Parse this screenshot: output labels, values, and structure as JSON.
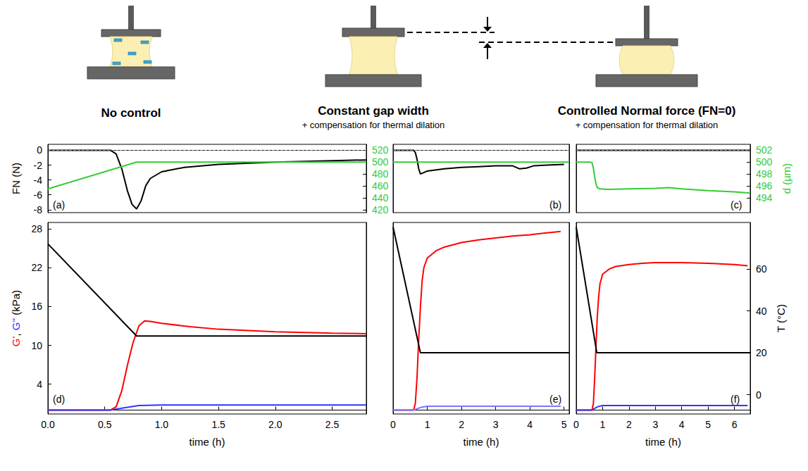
{
  "diagram": [
    {
      "title": "No control"
    },
    {
      "title": "Constant gap width",
      "subtitle": "+ compensation for thermal dilation"
    },
    {
      "title": "Controlled Normal force (FN=0)",
      "subtitle": "+ compensation for thermal dilation"
    }
  ],
  "chart_data": [
    {
      "type": "line",
      "panel_label": "(a)",
      "grid": false,
      "xlim": [
        0,
        2.8
      ],
      "ylabel": "FN (N)",
      "ylim": [
        -8.4,
        0.8
      ],
      "yticks": [
        -8,
        -6,
        -4,
        -2,
        0
      ],
      "y2lim": [
        415,
        530
      ],
      "y2ticks": [
        420,
        440,
        460,
        480,
        500,
        520
      ],
      "zero_line": 0,
      "series": [
        {
          "color": "#000000",
          "axis": "y",
          "x": [
            0,
            0.3,
            0.55,
            0.6,
            0.65,
            0.7,
            0.74,
            0.78,
            0.82,
            0.86,
            0.9,
            1.0,
            1.2,
            1.5,
            2.0,
            2.5,
            2.8
          ],
          "values": [
            0,
            0,
            0,
            -0.5,
            -2.5,
            -5.5,
            -7.3,
            -7.9,
            -6.8,
            -4.8,
            -3.8,
            -2.9,
            -2.3,
            -1.9,
            -1.6,
            -1.4,
            -1.3
          ]
        },
        {
          "color": "#33cc33",
          "axis": "y2",
          "x": [
            0,
            0.78,
            2.8
          ],
          "values": [
            455,
            500,
            500
          ]
        }
      ]
    },
    {
      "type": "line",
      "panel_label": "(b)",
      "grid": false,
      "xlim": [
        0,
        5.15
      ],
      "ylim": [
        -8.4,
        0.8
      ],
      "y2lim": [
        415,
        530
      ],
      "zero_line": 0,
      "series": [
        {
          "color": "#000000",
          "axis": "y",
          "x": [
            0,
            0.6,
            0.65,
            0.7,
            0.75,
            0.8,
            0.9,
            1.0,
            1.5,
            2.0,
            2.5,
            3.0,
            3.5,
            3.7,
            3.9,
            4.1,
            4.5,
            5.0
          ],
          "values": [
            0,
            0,
            -0.3,
            -1.2,
            -2.5,
            -3.2,
            -3.0,
            -2.8,
            -2.5,
            -2.3,
            -2.2,
            -2.1,
            -2.1,
            -2.5,
            -2.4,
            -2.1,
            -2.0,
            -1.9
          ]
        },
        {
          "color": "#33cc33",
          "axis": "y2",
          "x": [
            0,
            5.15
          ],
          "values": [
            500,
            500
          ]
        }
      ]
    },
    {
      "type": "line",
      "panel_label": "(c)",
      "grid": false,
      "xlim": [
        0,
        6.6
      ],
      "ylim": [
        -8.4,
        0.8
      ],
      "y2label": "d (µm)",
      "y2lim": [
        491.5,
        503
      ],
      "y2ticks": [
        494,
        496,
        498,
        500,
        502
      ],
      "zero_line": 0,
      "series": [
        {
          "color": "#000000",
          "axis": "y",
          "x": [
            0,
            6.6
          ],
          "values": [
            0,
            0
          ]
        },
        {
          "color": "#33cc33",
          "axis": "y2",
          "x": [
            0,
            0.55,
            0.6,
            0.65,
            0.7,
            0.75,
            0.8,
            0.9,
            1.2,
            2,
            3,
            3.5,
            4,
            5,
            6,
            6.6
          ],
          "values": [
            500,
            500,
            499.9,
            499,
            497.5,
            496.3,
            495.7,
            495.5,
            495.4,
            495.5,
            495.6,
            495.7,
            495.5,
            495.2,
            495,
            494.8
          ]
        }
      ]
    },
    {
      "type": "line",
      "panel_label": "(d)",
      "grid": false,
      "xlabel": "time (h)",
      "xlim": [
        0,
        2.8
      ],
      "xticks": [
        {
          "value": 0,
          "label": "0.0"
        },
        0.5,
        {
          "value": 1,
          "label": "1.0"
        },
        1.5,
        {
          "value": 2,
          "label": "2.0"
        },
        2.5
      ],
      "ylabel": "G', G'' (kPa)",
      "ylim": [
        -0.6,
        29
      ],
      "yticks": [
        4,
        10,
        16,
        22,
        28
      ],
      "y2lim": [
        -9.2,
        82.2
      ],
      "series": [
        {
          "color": "#ff0000",
          "axis": "y",
          "x": [
            0,
            0.55,
            0.6,
            0.65,
            0.7,
            0.75,
            0.8,
            0.85,
            0.9,
            1.0,
            1.25,
            1.5,
            2.0,
            2.5,
            2.8
          ],
          "values": [
            0,
            0,
            0.5,
            3,
            7,
            10.5,
            13,
            13.8,
            13.7,
            13.4,
            12.9,
            12.5,
            12.1,
            11.9,
            11.8
          ]
        },
        {
          "color": "#3333ff",
          "axis": "y",
          "x": [
            0,
            0.55,
            0.65,
            0.8,
            1.0,
            2.0,
            2.8
          ],
          "values": [
            0,
            0,
            0.3,
            0.7,
            0.8,
            0.8,
            0.8
          ]
        },
        {
          "color": "#000000",
          "axis": "y2",
          "x": [
            0,
            0.78,
            2.8
          ],
          "values": [
            72,
            28,
            28
          ]
        }
      ]
    },
    {
      "type": "line",
      "panel_label": "(e)",
      "grid": false,
      "xlabel": "time (h)",
      "xlim": [
        0,
        5.15
      ],
      "xticks": [
        0,
        1,
        2,
        3,
        4,
        5
      ],
      "ylim": [
        -0.6,
        29
      ],
      "y2lim": [
        -9.2,
        82.2
      ],
      "series": [
        {
          "color": "#ff0000",
          "axis": "y",
          "x": [
            0,
            0.6,
            0.65,
            0.7,
            0.75,
            0.8,
            0.85,
            0.9,
            1.0,
            1.25,
            1.5,
            2,
            2.5,
            3,
            3.5,
            4,
            4.5,
            4.9
          ],
          "values": [
            0,
            0,
            1,
            5,
            11,
            16,
            20,
            22,
            23.5,
            24.6,
            25.2,
            25.9,
            26.3,
            26.6,
            26.9,
            27.1,
            27.4,
            27.6
          ]
        },
        {
          "color": "#7777ff",
          "axis": "y",
          "x": [
            0,
            0.6,
            0.8,
            1,
            2,
            3,
            4,
            4.9
          ],
          "values": [
            0,
            0,
            0.4,
            0.6,
            0.6,
            0.6,
            0.6,
            0.6
          ]
        },
        {
          "color": "#000000",
          "axis": "y2",
          "x": [
            0,
            0.8,
            5.15
          ],
          "values": [
            80,
            20,
            20
          ]
        }
      ]
    },
    {
      "type": "line",
      "panel_label": "(f)",
      "grid": false,
      "xlabel": "time (h)",
      "xlim": [
        0,
        6.6
      ],
      "xticks": [
        0,
        1,
        2,
        3,
        4,
        5,
        6
      ],
      "ylim": [
        -0.6,
        29
      ],
      "y2label": "T (°C)",
      "y2lim": [
        -9.2,
        82.2
      ],
      "y2ticks": [
        0,
        20,
        40,
        60
      ],
      "series": [
        {
          "color": "#ff0000",
          "axis": "y",
          "x": [
            0,
            0.6,
            0.65,
            0.7,
            0.75,
            0.8,
            0.85,
            0.9,
            1.0,
            1.25,
            1.5,
            2,
            2.5,
            3,
            4,
            5,
            6,
            6.5
          ],
          "values": [
            0,
            0,
            1,
            5,
            10,
            14.5,
            17.5,
            19.5,
            21,
            21.8,
            22.2,
            22.5,
            22.7,
            22.8,
            22.8,
            22.7,
            22.5,
            22.3
          ]
        },
        {
          "color": "#3333ff",
          "axis": "y",
          "x": [
            0,
            0.6,
            0.8,
            1,
            2,
            4,
            6,
            6.5
          ],
          "values": [
            0,
            0,
            0.5,
            0.7,
            0.7,
            0.7,
            0.7,
            0.7
          ]
        },
        {
          "color": "#000000",
          "axis": "y2",
          "x": [
            0,
            0.78,
            6.6
          ],
          "values": [
            80,
            20,
            20
          ]
        }
      ]
    }
  ]
}
